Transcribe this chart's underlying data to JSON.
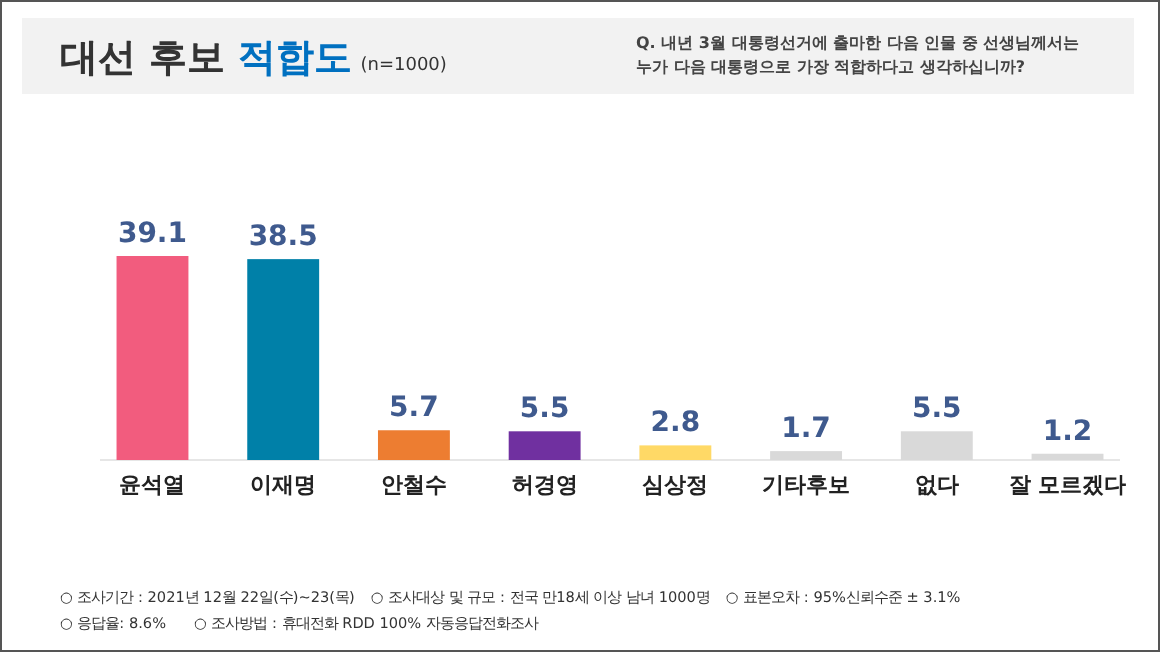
{
  "chart_data": {
    "type": "bar",
    "title": "대선 후보 적합도",
    "subtitle": "(n=1000)",
    "categories": [
      "윤석열",
      "이재명",
      "안철수",
      "허경영",
      "심상정",
      "기타후보",
      "없다",
      "잘 모르겠다"
    ],
    "values": [
      39.1,
      38.5,
      5.7,
      5.5,
      2.8,
      1.7,
      5.5,
      1.2
    ],
    "colors": [
      "#f25c7e",
      "#0080a8",
      "#ed7d31",
      "#7030a0",
      "#ffd966",
      "#d9d9d9",
      "#d9d9d9",
      "#d9d9d9"
    ],
    "data_labels": true,
    "annotations": [
      "Q. 내년 3월 대통령선거에 출마한 다음 인물 중 선생님께서는",
      "누가 다음 대통령으로 가장 적합하다고 생각하십니까?",
      "○ 조사기간 : 2021년 12월 22일(수)~23(목)",
      "○ 조사대상 및 규모 : 전국 만18세 이상 남녀 1000명",
      "○ 표본오차 : 95%신뢰수준 ± 3.1%",
      "○ 응답율: 8.6%",
      "○ 조사방법 : 휴대전화 RDD 100% 자동응답전화조사"
    ]
  }
}
